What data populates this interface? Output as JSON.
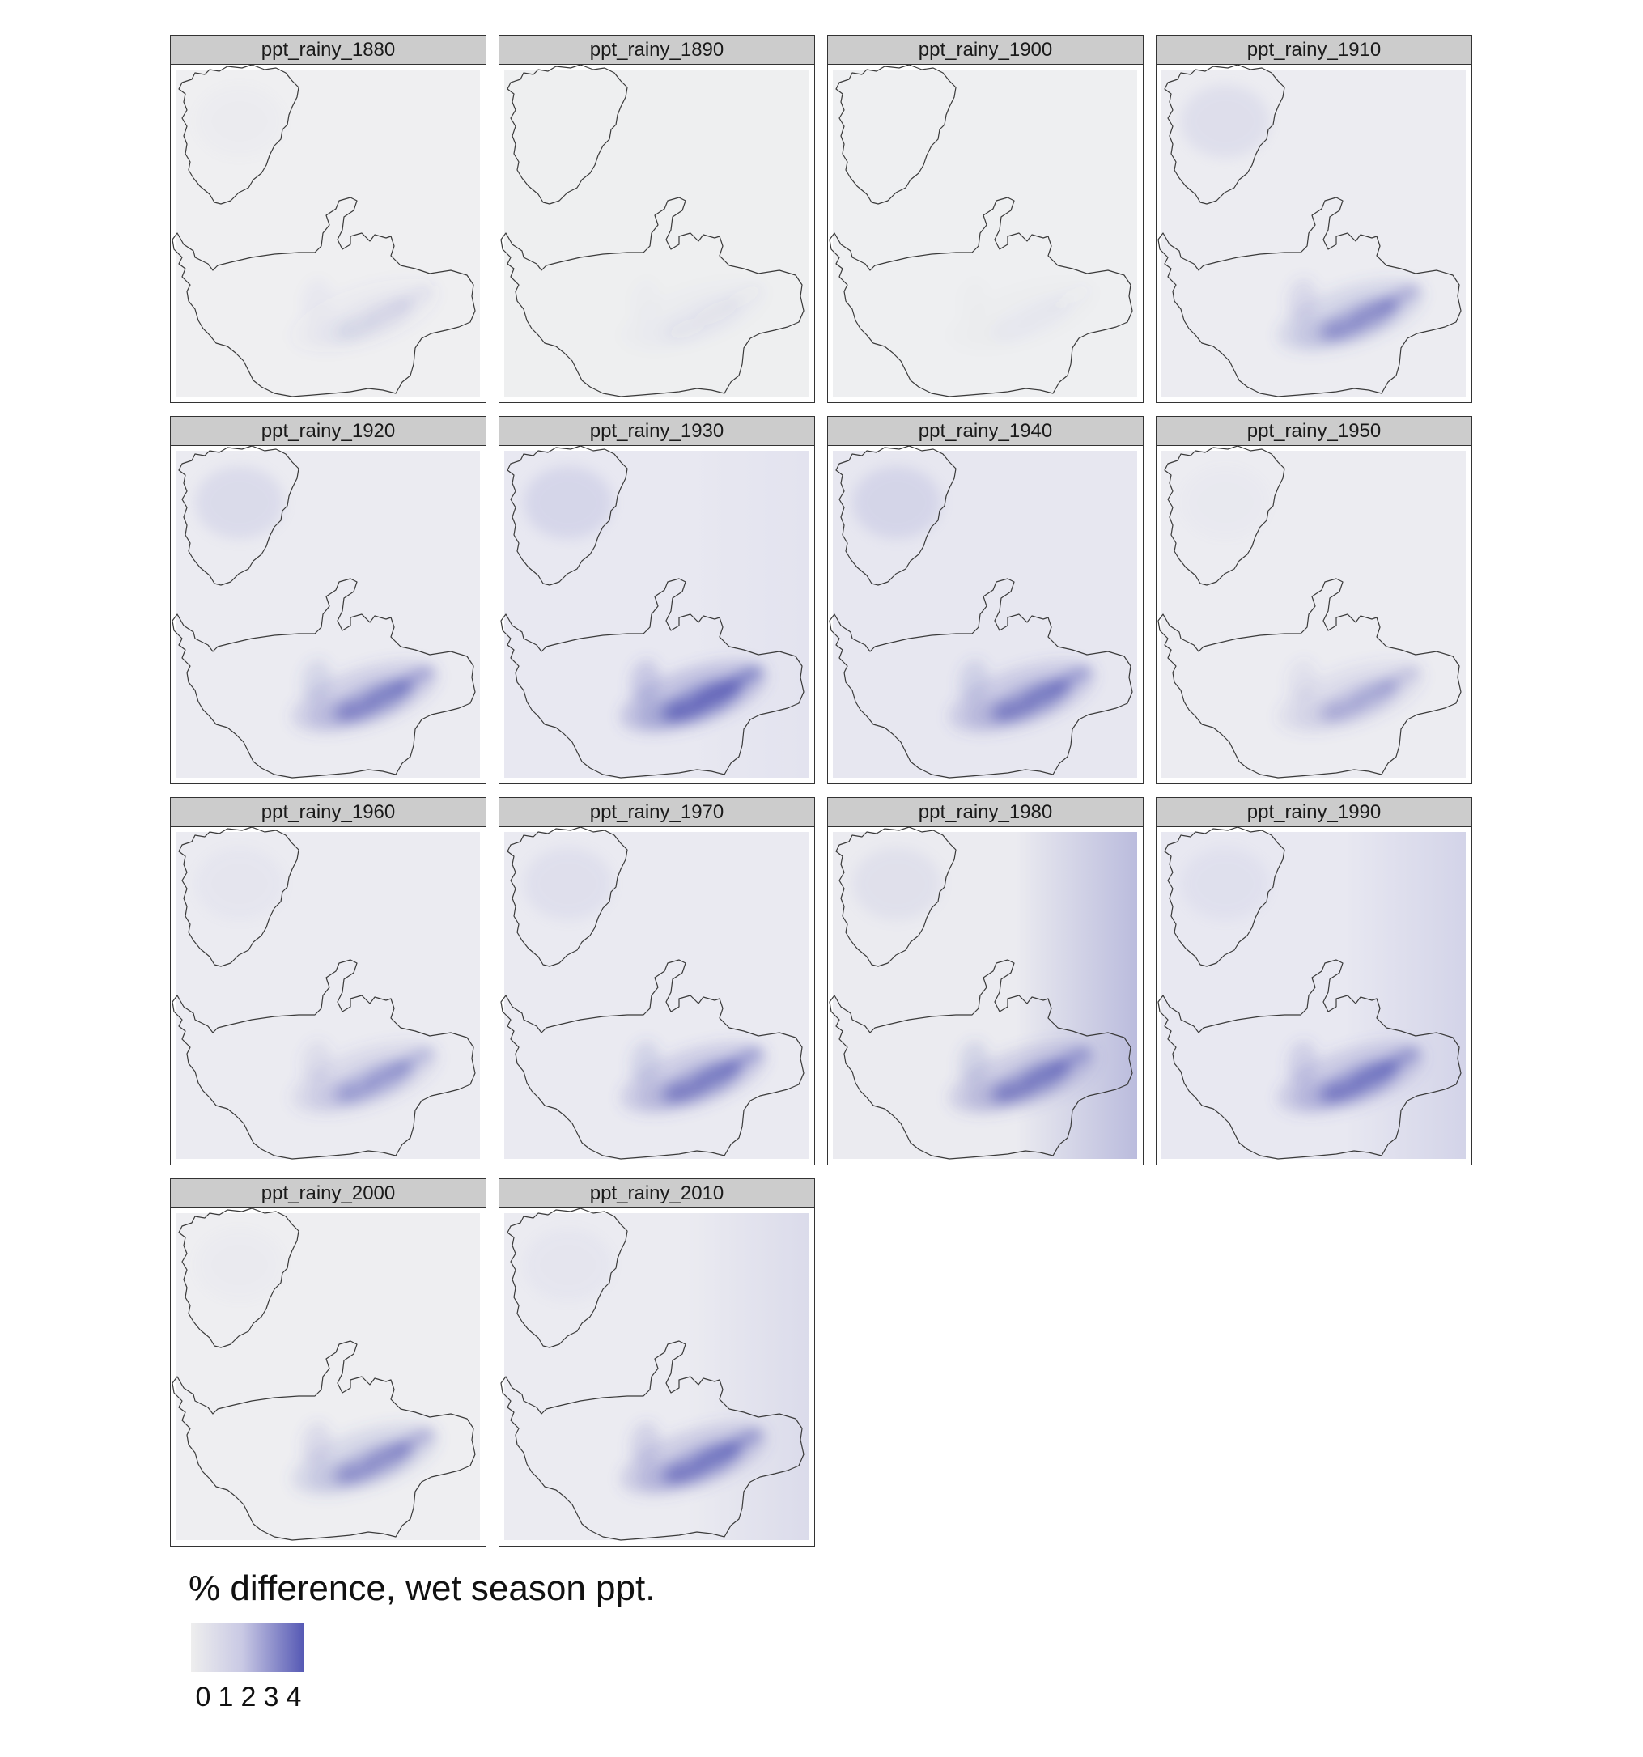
{
  "panels": [
    {
      "title": "ppt_rainy_1880",
      "intensity": 0.12,
      "bg": "#efeff1",
      "east_gradient": 0.0,
      "north_tint": 0.05
    },
    {
      "title": "ppt_rainy_1890",
      "intensity": 0.05,
      "bg": "#eeeff0",
      "east_gradient": 0.0,
      "north_tint": 0.0
    },
    {
      "title": "ppt_rainy_1900",
      "intensity": 0.03,
      "bg": "#eeeff1",
      "east_gradient": 0.0,
      "north_tint": 0.0
    },
    {
      "title": "ppt_rainy_1910",
      "intensity": 0.55,
      "bg": "#ececf1",
      "east_gradient": 0.0,
      "north_tint": 0.25
    },
    {
      "title": "ppt_rainy_1920",
      "intensity": 0.65,
      "bg": "#ebebf1",
      "east_gradient": 0.0,
      "north_tint": 0.3
    },
    {
      "title": "ppt_rainy_1930",
      "intensity": 0.95,
      "bg": "#e8e8f1",
      "east_gradient": 0.05,
      "north_tint": 0.35
    },
    {
      "title": "ppt_rainy_1940",
      "intensity": 0.7,
      "bg": "#e7e7f0",
      "east_gradient": 0.0,
      "north_tint": 0.35
    },
    {
      "title": "ppt_rainy_1950",
      "intensity": 0.35,
      "bg": "#ececf1",
      "east_gradient": 0.0,
      "north_tint": 0.05
    },
    {
      "title": "ppt_rainy_1960",
      "intensity": 0.45,
      "bg": "#ebebf1",
      "east_gradient": 0.0,
      "north_tint": 0.1
    },
    {
      "title": "ppt_rainy_1970",
      "intensity": 0.7,
      "bg": "#eaeaf1",
      "east_gradient": 0.0,
      "north_tint": 0.2
    },
    {
      "title": "ppt_rainy_1980",
      "intensity": 0.7,
      "bg": "#ebebf0",
      "east_gradient": 0.45,
      "north_tint": 0.2
    },
    {
      "title": "ppt_rainy_1990",
      "intensity": 0.75,
      "bg": "#e8e8f1",
      "east_gradient": 0.2,
      "north_tint": 0.15
    },
    {
      "title": "ppt_rainy_2000",
      "intensity": 0.55,
      "bg": "#eeeef1",
      "east_gradient": 0.0,
      "north_tint": 0.05
    },
    {
      "title": "ppt_rainy_2010",
      "intensity": 0.75,
      "bg": "#ebebf1",
      "east_gradient": 0.15,
      "north_tint": 0.1
    }
  ],
  "legend": {
    "title": "% difference, wet season ppt.",
    "ticks": [
      "0",
      "1",
      "2",
      "3",
      "4"
    ],
    "color_low": "#eeeeee",
    "color_high": "#5558b4"
  }
}
